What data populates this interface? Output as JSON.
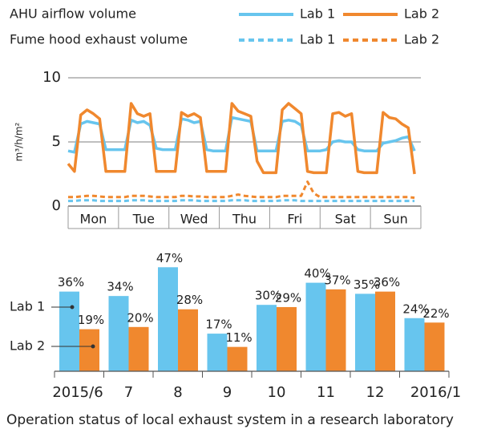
{
  "caption": "Operation status of local exhaust system in a research laboratory",
  "chart_data": [
    {
      "type": "line",
      "legend_rows": [
        "AHU airflow volume",
        "Fume hood exhaust volume"
      ],
      "ylabel": "m³/h/m²",
      "categories": [
        "Mon",
        "Tue",
        "Wed",
        "Thu",
        "Fri",
        "Sat",
        "Sun"
      ],
      "xlim": [
        0,
        168
      ],
      "ylim": [
        0,
        10
      ],
      "yticks": [
        0,
        5,
        10
      ],
      "grid": true,
      "x": [
        0,
        3,
        6,
        9,
        12,
        15,
        18,
        21,
        24,
        27,
        30,
        33,
        36,
        39,
        42,
        45,
        48,
        51,
        54,
        57,
        60,
        63,
        66,
        69,
        72,
        75,
        78,
        81,
        84,
        87,
        90,
        93,
        96,
        99,
        102,
        105,
        108,
        111,
        114,
        117,
        120,
        123,
        126,
        129,
        132,
        135,
        138,
        141,
        144,
        147,
        150,
        153,
        156,
        159,
        162,
        165
      ],
      "series": [
        {
          "name": "Lab 1",
          "color": "#67c5ee",
          "dashed": false,
          "values": [
            4.3,
            4.2,
            6.4,
            6.6,
            6.5,
            6.4,
            4.4,
            4.4,
            4.4,
            4.4,
            6.7,
            6.5,
            6.6,
            6.3,
            4.5,
            4.4,
            4.4,
            4.4,
            6.8,
            6.7,
            6.5,
            6.6,
            4.4,
            4.3,
            4.3,
            4.3,
            6.9,
            6.8,
            6.7,
            6.6,
            4.3,
            4.3,
            4.3,
            4.3,
            6.6,
            6.7,
            6.6,
            6.3,
            4.3,
            4.3,
            4.3,
            4.4,
            5.0,
            5.1,
            5.0,
            5.0,
            4.4,
            4.3,
            4.3,
            4.3,
            4.9,
            5.0,
            5.1,
            5.3,
            5.4,
            4.3
          ]
        },
        {
          "name": "Lab 2",
          "color": "#f0882e",
          "dashed": false,
          "values": [
            3.3,
            2.7,
            7.1,
            7.5,
            7.2,
            6.8,
            2.7,
            2.7,
            2.7,
            2.7,
            8.0,
            7.2,
            7.0,
            7.2,
            2.7,
            2.7,
            2.7,
            2.7,
            7.3,
            7.0,
            7.2,
            6.9,
            2.7,
            2.7,
            2.7,
            2.7,
            8.0,
            7.4,
            7.2,
            7.0,
            3.5,
            2.6,
            2.6,
            2.6,
            7.5,
            8.0,
            7.6,
            7.2,
            2.7,
            2.6,
            2.6,
            2.6,
            7.2,
            7.3,
            7.0,
            7.2,
            2.7,
            2.6,
            2.6,
            2.6,
            7.3,
            6.9,
            6.8,
            6.4,
            6.1,
            2.5
          ]
        },
        {
          "name": "Lab 1",
          "color": "#67c5ee",
          "dashed": true,
          "values": [
            0.4,
            0.4,
            0.45,
            0.45,
            0.45,
            0.4,
            0.4,
            0.4,
            0.4,
            0.4,
            0.45,
            0.45,
            0.45,
            0.4,
            0.4,
            0.4,
            0.4,
            0.4,
            0.45,
            0.45,
            0.45,
            0.4,
            0.4,
            0.4,
            0.4,
            0.4,
            0.45,
            0.45,
            0.45,
            0.4,
            0.4,
            0.4,
            0.4,
            0.4,
            0.45,
            0.45,
            0.45,
            0.4,
            0.4,
            0.4,
            0.4,
            0.4,
            0.4,
            0.4,
            0.4,
            0.4,
            0.4,
            0.4,
            0.4,
            0.4,
            0.4,
            0.4,
            0.4,
            0.4,
            0.4,
            0.4
          ]
        },
        {
          "name": "Lab 2",
          "color": "#f0882e",
          "dashed": true,
          "values": [
            0.7,
            0.7,
            0.75,
            0.8,
            0.8,
            0.75,
            0.7,
            0.7,
            0.7,
            0.7,
            0.8,
            0.8,
            0.8,
            0.75,
            0.7,
            0.7,
            0.7,
            0.7,
            0.8,
            0.8,
            0.75,
            0.75,
            0.7,
            0.7,
            0.7,
            0.7,
            0.8,
            0.9,
            0.8,
            0.75,
            0.7,
            0.7,
            0.7,
            0.7,
            0.8,
            0.8,
            0.8,
            0.8,
            1.9,
            1.0,
            0.7,
            0.7,
            0.7,
            0.7,
            0.7,
            0.7,
            0.7,
            0.7,
            0.7,
            0.7,
            0.7,
            0.7,
            0.7,
            0.7,
            0.7,
            0.65
          ]
        }
      ]
    },
    {
      "type": "bar",
      "categories": [
        "2015/6",
        "7",
        "8",
        "9",
        "10",
        "11",
        "12",
        "2016/1"
      ],
      "ylim": [
        0,
        50
      ],
      "series": [
        {
          "name": "Lab 1",
          "color": "#67c5ee",
          "values": [
            36,
            34,
            47,
            17,
            30,
            40,
            35,
            24
          ],
          "value_labels": [
            "36%",
            "34%",
            "47%",
            "17%",
            "30%",
            "40%",
            "35%",
            "24%"
          ]
        },
        {
          "name": "Lab 2",
          "color": "#f0882e",
          "values": [
            19,
            20,
            28,
            11,
            29,
            37,
            36,
            22
          ],
          "value_labels": [
            "19%",
            "20%",
            "28%",
            "11%",
            "29%",
            "37%",
            "36%",
            "22%"
          ]
        }
      ]
    }
  ]
}
